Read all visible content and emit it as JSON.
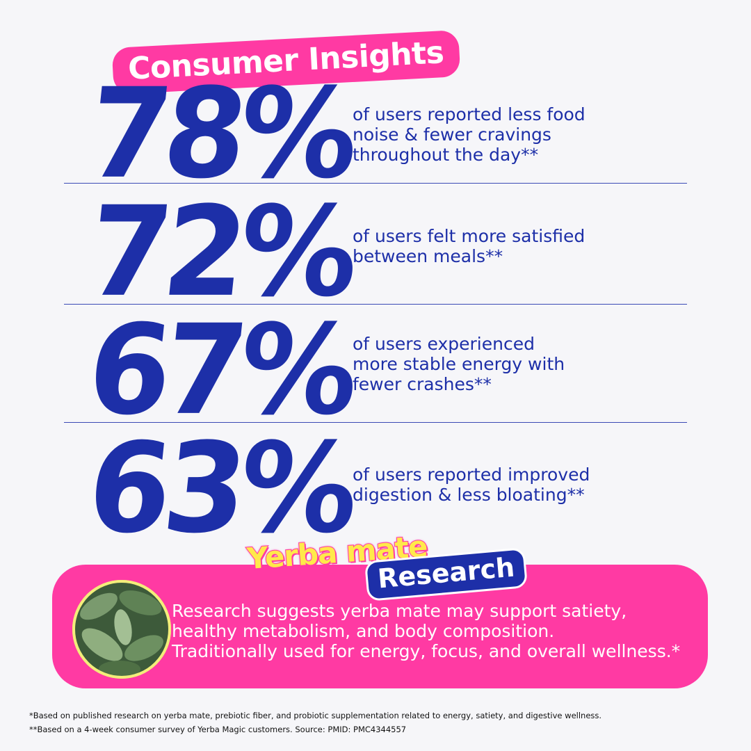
{
  "header": {
    "title": "Consumer Insights"
  },
  "stats": [
    {
      "value": "78%",
      "lines": [
        "of users reported less food",
        "noise & fewer cravings",
        "throughout the day**"
      ]
    },
    {
      "value": "72%",
      "lines": [
        "of users felt more satisfied",
        "between meals**"
      ]
    },
    {
      "value": "67%",
      "lines": [
        "of users experienced",
        "more stable energy with",
        "fewer crashes**"
      ]
    },
    {
      "value": "63%",
      "lines": [
        "of users reported improved",
        "digestion & less bloating**"
      ]
    }
  ],
  "research": {
    "title_top": "Yerba mate",
    "title_bottom": "Research",
    "lines": [
      "Research suggests yerba mate may support satiety,",
      "healthy metabolism, and body composition.",
      "Traditionally used for energy, focus, and overall wellness.*"
    ]
  },
  "footnotes": [
    "*Based on published research on yerba mate, prebiotic fiber, and probiotic supplementation related to energy, satiety, and digestive wellness.",
    "**Based on a 4-week consumer survey of Yerba Magic customers. Source: PMID: PMC4344557"
  ]
}
